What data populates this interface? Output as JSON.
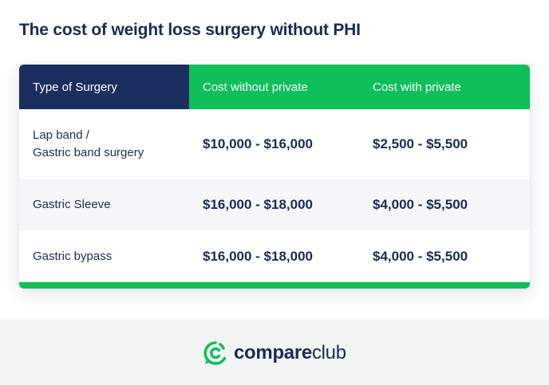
{
  "title": "The cost of weight loss surgery without PHI",
  "table": {
    "headers": [
      "Type of Surgery",
      "Cost without private",
      "Cost with private"
    ],
    "rows": [
      {
        "type_line1": "Lap band /",
        "type_line2": "Gastric band surgery",
        "without": "$10,000 - $16,000",
        "with": "$2,500 - $5,500"
      },
      {
        "type_line1": "Gastric Sleeve",
        "type_line2": "",
        "without": "$16,000 - $18,000",
        "with": "$4,000 - $5,500"
      },
      {
        "type_line1": "Gastric bypass",
        "type_line2": "",
        "without": "$16,000 - $18,000",
        "with": "$4,000 - $5,500"
      }
    ]
  },
  "footer": {
    "brand_part1": "compare",
    "brand_part2": "club",
    "logo_icon": "compareclub-logo-icon"
  },
  "colors": {
    "navy": "#1a2f5e",
    "green": "#0fbf5a",
    "text": "#1a2b55"
  }
}
